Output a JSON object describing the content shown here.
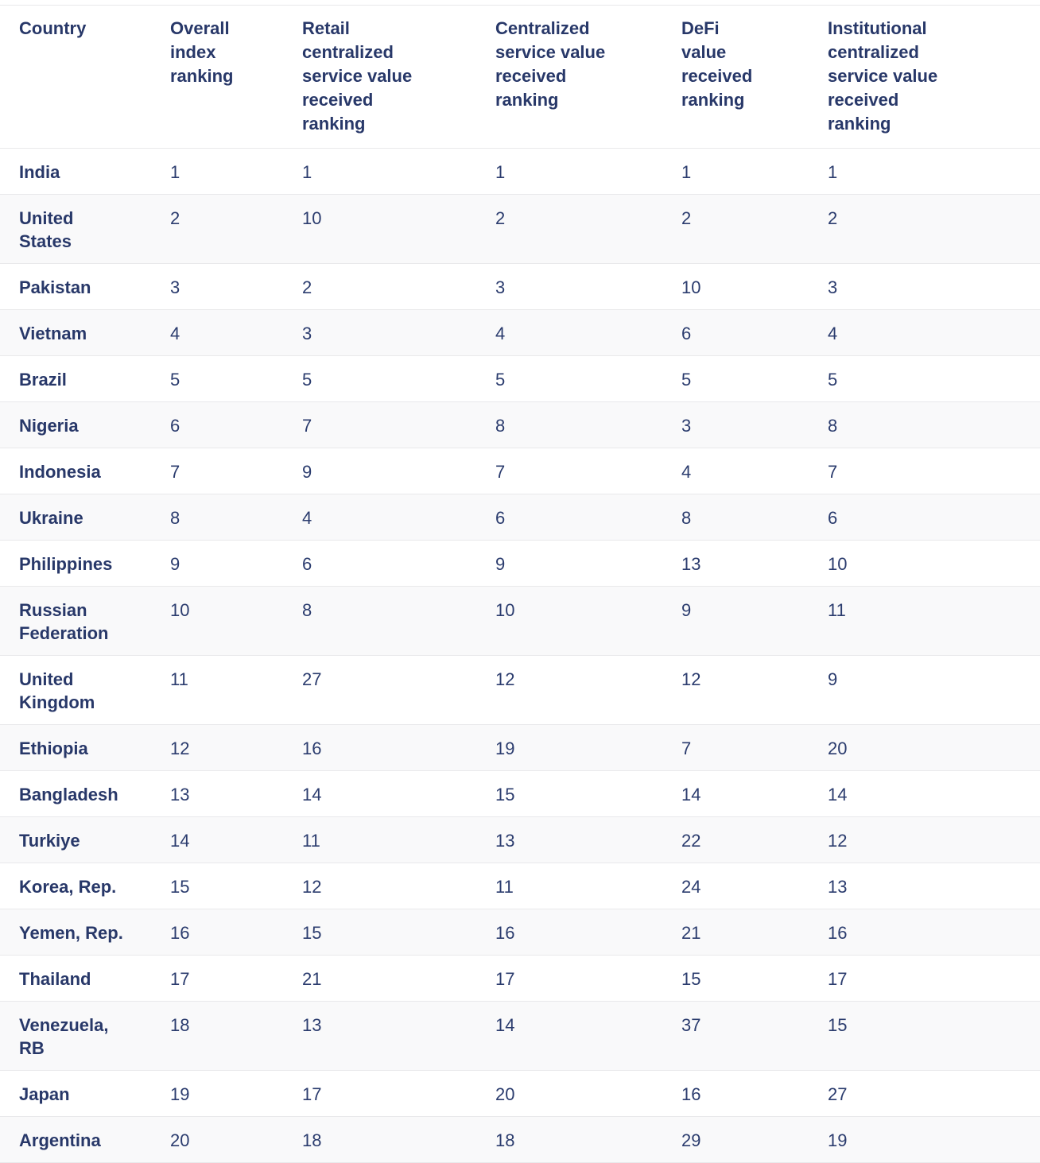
{
  "colors": {
    "header_text": "#283869",
    "country_text": "#283869",
    "value_text": "#2b3c6e",
    "row_stripe": "#f9f9fa",
    "row_border": "#e9e9eb",
    "page_bg": "#ffffff"
  },
  "chart_data": {
    "type": "table",
    "columns": [
      "Country",
      "Overall index ranking",
      "Retail centralized service value received ranking",
      "Centralized service value received ranking",
      "DeFi value received ranking",
      "Institutional centralized service value received ranking"
    ],
    "rows": [
      [
        "India",
        "1",
        "1",
        "1",
        "1",
        "1"
      ],
      [
        "United States",
        "2",
        "10",
        "2",
        "2",
        "2"
      ],
      [
        "Pakistan",
        "3",
        "2",
        "3",
        "10",
        "3"
      ],
      [
        "Vietnam",
        "4",
        "3",
        "4",
        "6",
        "4"
      ],
      [
        "Brazil",
        "5",
        "5",
        "5",
        "5",
        "5"
      ],
      [
        "Nigeria",
        "6",
        "7",
        "8",
        "3",
        "8"
      ],
      [
        "Indonesia",
        "7",
        "9",
        "7",
        "4",
        "7"
      ],
      [
        "Ukraine",
        "8",
        "4",
        "6",
        "8",
        "6"
      ],
      [
        "Philippines",
        "9",
        "6",
        "9",
        "13",
        "10"
      ],
      [
        "Russian Federation",
        "10",
        "8",
        "10",
        "9",
        "11"
      ],
      [
        "United Kingdom",
        "11",
        "27",
        "12",
        "12",
        "9"
      ],
      [
        "Ethiopia",
        "12",
        "16",
        "19",
        "7",
        "20"
      ],
      [
        "Bangladesh",
        "13",
        "14",
        "15",
        "14",
        "14"
      ],
      [
        "Turkiye",
        "14",
        "11",
        "13",
        "22",
        "12"
      ],
      [
        "Korea, Rep.",
        "15",
        "12",
        "11",
        "24",
        "13"
      ],
      [
        "Yemen, Rep.",
        "16",
        "15",
        "16",
        "21",
        "16"
      ],
      [
        "Thailand",
        "17",
        "21",
        "17",
        "15",
        "17"
      ],
      [
        "Venezuela, RB",
        "18",
        "13",
        "14",
        "37",
        "15"
      ],
      [
        "Japan",
        "19",
        "17",
        "20",
        "16",
        "27"
      ],
      [
        "Argentina",
        "20",
        "18",
        "18",
        "29",
        "19"
      ]
    ],
    "layout": {
      "zebra": "even rows shaded",
      "header_position": "top",
      "grid": "horizontal row dividers only"
    }
  }
}
